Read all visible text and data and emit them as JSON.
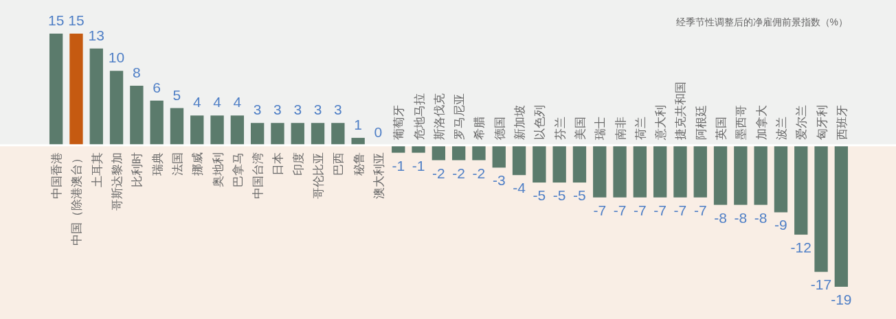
{
  "chart_data": {
    "type": "bar",
    "title": "经季节性调整后的净雇佣前景指数（%）",
    "categories": [
      "中国香港",
      "中国（除港澳台）",
      "土耳其",
      "哥斯达黎加",
      "比利时",
      "瑞典",
      "法国",
      "挪威",
      "奥地利",
      "巴拿马",
      "中国台湾",
      "日本",
      "印度",
      "哥伦比亚",
      "巴西",
      "秘鲁",
      "澳大利亚",
      "葡萄牙",
      "危地马拉",
      "斯洛伐克",
      "罗马尼亚",
      "希腊",
      "德国",
      "新加坡",
      "以色列",
      "芬兰",
      "美国",
      "瑞士",
      "南非",
      "荷兰",
      "意大利",
      "捷克共和国",
      "阿根廷",
      "英国",
      "墨西哥",
      "加拿大",
      "波兰",
      "爱尔兰",
      "匈牙利",
      "西班牙"
    ],
    "values": [
      15,
      15,
      13,
      10,
      8,
      6,
      5,
      4,
      4,
      4,
      3,
      3,
      3,
      3,
      3,
      1,
      0,
      -1,
      -1,
      -2,
      -2,
      -2,
      -3,
      -4,
      -5,
      -5,
      -5,
      -7,
      -7,
      -7,
      -7,
      -7,
      -7,
      -8,
      -8,
      -8,
      -9,
      -12,
      -17,
      -19
    ],
    "colors": [
      "#5b7b6c",
      "#c55a11",
      "#5b7b6c",
      "#5b7b6c",
      "#5b7b6c",
      "#5b7b6c",
      "#5b7b6c",
      "#5b7b6c",
      "#5b7b6c",
      "#5b7b6c",
      "#5b7b6c",
      "#5b7b6c",
      "#5b7b6c",
      "#5b7b6c",
      "#5b7b6c",
      "#5b7b6c",
      "#5b7b6c",
      "#5b7b6c",
      "#5b7b6c",
      "#5b7b6c",
      "#5b7b6c",
      "#5b7b6c",
      "#5b7b6c",
      "#5b7b6c",
      "#5b7b6c",
      "#5b7b6c",
      "#5b7b6c",
      "#5b7b6c",
      "#5b7b6c",
      "#5b7b6c",
      "#5b7b6c",
      "#5b7b6c",
      "#5b7b6c",
      "#5b7b6c",
      "#5b7b6c",
      "#5b7b6c",
      "#5b7b6c",
      "#5b7b6c",
      "#5b7b6c",
      "#5b7b6c"
    ],
    "data_labels": true
  }
}
